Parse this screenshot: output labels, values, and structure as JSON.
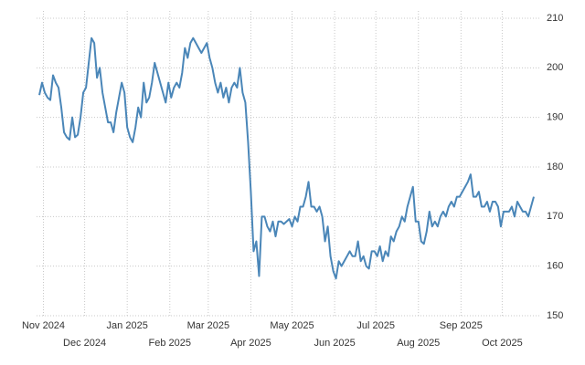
{
  "chart_data": {
    "type": "line",
    "color": "#4a86b8",
    "grid": true,
    "xlim": [
      -5,
      361
    ],
    "ylim": [
      150,
      210
    ],
    "yticks": [
      150,
      160,
      170,
      180,
      190,
      200,
      210
    ],
    "xticks": [
      {
        "value": 0,
        "label": "Nov 2024"
      },
      {
        "value": 30,
        "label": "Dec 2024"
      },
      {
        "value": 61,
        "label": "Jan 2025"
      },
      {
        "value": 92,
        "label": "Feb 2025"
      },
      {
        "value": 120,
        "label": "Mar 2025"
      },
      {
        "value": 151,
        "label": "Apr 2025"
      },
      {
        "value": 181,
        "label": "May 2025"
      },
      {
        "value": 212,
        "label": "Jun 2025"
      },
      {
        "value": 242,
        "label": "Jul 2025"
      },
      {
        "value": 273,
        "label": "Aug 2025"
      },
      {
        "value": 304,
        "label": "Sep 2025"
      },
      {
        "value": 334,
        "label": "Oct 2025"
      }
    ],
    "x": [
      -3,
      -1,
      1,
      3,
      5,
      7,
      9,
      11,
      13,
      15,
      17,
      19,
      21,
      23,
      25,
      27,
      29,
      31,
      33,
      35,
      37,
      39,
      41,
      43,
      45,
      47,
      49,
      51,
      53,
      55,
      57,
      59,
      61,
      63,
      65,
      67,
      69,
      71,
      73,
      75,
      77,
      79,
      81,
      83,
      85,
      87,
      89,
      91,
      93,
      95,
      97,
      99,
      101,
      103,
      105,
      107,
      109,
      111,
      113,
      115,
      117,
      119,
      121,
      123,
      125,
      127,
      129,
      131,
      133,
      135,
      137,
      139,
      141,
      143,
      145,
      147,
      149,
      151,
      153,
      155,
      157,
      159,
      161,
      163,
      165,
      167,
      169,
      171,
      173,
      175,
      177,
      179,
      181,
      183,
      185,
      187,
      189,
      191,
      193,
      195,
      197,
      199,
      201,
      203,
      205,
      207,
      209,
      211,
      213,
      215,
      217,
      219,
      221,
      223,
      225,
      227,
      229,
      231,
      233,
      235,
      237,
      239,
      241,
      243,
      245,
      247,
      249,
      251,
      253,
      255,
      257,
      259,
      261,
      263,
      265,
      267,
      269,
      271,
      273,
      275,
      277,
      279,
      281,
      283,
      285,
      287,
      289,
      291,
      293,
      295,
      297,
      299,
      301,
      303,
      305,
      307,
      309,
      311,
      313,
      315,
      317,
      319,
      321,
      323,
      325,
      327,
      329,
      331,
      333,
      335,
      337,
      339,
      341,
      343,
      345,
      347,
      349,
      351,
      353,
      355,
      357
    ],
    "values": [
      194.5,
      197,
      195,
      194,
      193.5,
      198.5,
      197,
      196,
      192,
      187,
      186,
      185.5,
      190,
      186,
      186.5,
      190,
      195,
      196,
      201,
      206,
      205,
      198,
      200,
      195,
      192,
      189,
      189,
      187,
      191,
      194,
      197,
      195,
      188,
      186,
      185,
      188,
      192,
      190,
      197,
      193,
      194,
      197,
      201,
      199,
      197,
      195,
      193,
      197,
      194,
      196,
      197,
      196,
      199,
      204,
      202,
      205,
      206,
      205,
      204,
      203,
      204,
      205,
      202,
      200,
      197,
      195,
      197,
      194,
      196,
      193,
      196,
      197,
      196,
      200,
      195,
      193,
      185,
      175,
      163,
      165,
      158,
      170,
      170,
      168,
      167,
      169,
      166,
      169,
      169,
      168.5,
      169,
      169.5,
      168,
      170,
      169,
      172,
      172,
      174,
      177,
      172,
      172,
      171,
      172,
      170,
      165,
      168,
      162,
      159,
      157.5,
      161,
      160,
      161,
      162,
      163,
      162,
      162,
      165,
      161,
      162,
      160,
      159.5,
      163,
      163,
      162,
      164,
      161,
      163,
      162,
      166,
      165,
      167,
      168,
      170,
      169,
      172,
      174,
      176,
      169,
      169,
      165,
      164.5,
      167,
      171,
      168,
      169,
      168,
      170,
      171,
      170,
      172,
      173,
      172,
      174,
      174,
      175,
      176,
      177,
      178.5,
      174,
      174,
      175,
      172,
      172,
      173,
      171,
      173,
      173,
      172,
      168,
      171,
      171,
      171,
      172,
      170,
      173,
      172,
      171,
      171,
      170,
      172,
      174
    ]
  }
}
